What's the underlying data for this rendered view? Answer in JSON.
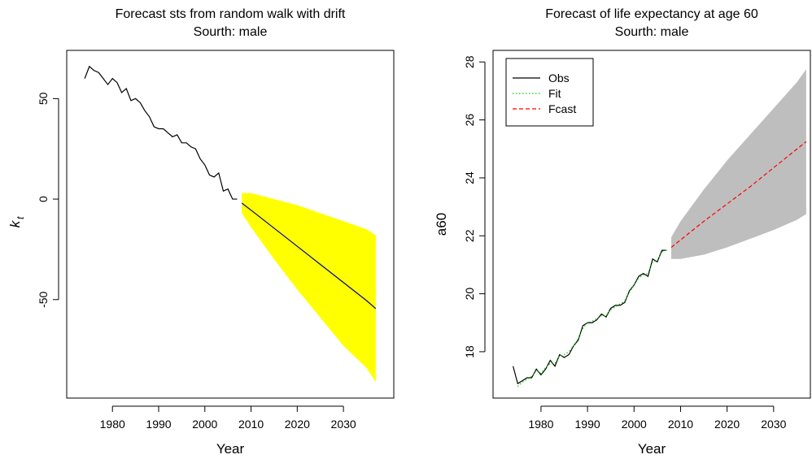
{
  "chart_data": [
    {
      "type": "line",
      "title": "Forecast sts from random walk with drift",
      "subtitle": "Sourth: male",
      "xlabel": "Year",
      "ylabel": "k",
      "ylabel_sub": "t",
      "xlim": [
        1970.1,
        2040.9
      ],
      "ylim": [
        -99,
        74
      ],
      "xticks": [
        1980,
        1990,
        2000,
        2010,
        2020,
        2030
      ],
      "yticks": [
        -50,
        0,
        50
      ],
      "band": {
        "color": "#ffff00",
        "x": [
          2008,
          2010,
          2015,
          2020,
          2025,
          2030,
          2035,
          2037
        ],
        "upper": [
          3,
          3,
          0,
          -3,
          -7,
          -11,
          -15,
          -18
        ],
        "lower": [
          -7,
          -14,
          -30,
          -45,
          -59,
          -73,
          -84,
          -91
        ]
      },
      "series": [
        {
          "color": "#000000",
          "linestyle": "solid",
          "x": [
            1974,
            1975,
            1976,
            1977,
            1978,
            1979,
            1980,
            1981,
            1982,
            1983,
            1984,
            1985,
            1986,
            1987,
            1988,
            1989,
            1990,
            1991,
            1992,
            1993,
            1994,
            1995,
            1996,
            1997,
            1998,
            1999,
            2000,
            2001,
            2002,
            2003,
            2004,
            2005,
            2006,
            2007
          ],
          "values": [
            60,
            66,
            64,
            63,
            60,
            57,
            60,
            58,
            53,
            55,
            49,
            50,
            48,
            44,
            41,
            36,
            35,
            35,
            33,
            31,
            32,
            28,
            28,
            26,
            25,
            20,
            17,
            12,
            11,
            13,
            4,
            5,
            0,
            0
          ]
        },
        {
          "color": "#000080",
          "linestyle": "solid",
          "x": [
            2008,
            2010,
            2015,
            2020,
            2025,
            2030,
            2035,
            2037
          ],
          "values": [
            -2,
            -5.5,
            -14.5,
            -23.5,
            -32.5,
            -41.5,
            -50.5,
            -54.5
          ]
        }
      ]
    },
    {
      "type": "line",
      "title": "Forecast of life expectancy at age 60",
      "subtitle": "Sourth: male",
      "xlabel": "Year",
      "ylabel": "a60",
      "xlim": [
        1969.7,
        2037.9
      ],
      "ylim": [
        16.4,
        28.4
      ],
      "xticks": [
        1980,
        1990,
        2000,
        2010,
        2020,
        2030
      ],
      "yticks": [
        18,
        20,
        22,
        24,
        26,
        28
      ],
      "legend": "top-left",
      "band": {
        "color": "#bebebe",
        "x": [
          2008,
          2010,
          2015,
          2020,
          2025,
          2030,
          2035,
          2037
        ],
        "upper": [
          21.95,
          22.5,
          23.6,
          24.6,
          25.5,
          26.4,
          27.3,
          27.75
        ],
        "lower": [
          21.2,
          21.2,
          21.35,
          21.6,
          21.9,
          22.2,
          22.55,
          22.75
        ]
      },
      "series": [
        {
          "name": "Obs",
          "color": "#000000",
          "linestyle": "solid",
          "x": [
            1974,
            1975,
            1976,
            1977,
            1978,
            1979,
            1980,
            1981,
            1982,
            1983,
            1984,
            1985,
            1986,
            1987,
            1988,
            1989,
            1990,
            1991,
            1992,
            1993,
            1994,
            1995,
            1996,
            1997,
            1998,
            1999,
            2000,
            2001,
            2002,
            2003,
            2004,
            2005,
            2006,
            2007
          ],
          "values": [
            17.5,
            16.9,
            17.0,
            17.1,
            17.1,
            17.4,
            17.2,
            17.4,
            17.7,
            17.5,
            17.9,
            17.8,
            17.9,
            18.2,
            18.4,
            18.9,
            19.0,
            19.0,
            19.1,
            19.3,
            19.2,
            19.5,
            19.6,
            19.6,
            19.7,
            20.1,
            20.3,
            20.6,
            20.7,
            20.6,
            21.2,
            21.1,
            21.5,
            21.5
          ]
        },
        {
          "name": "Fit",
          "color": "#00cd00",
          "linestyle": "dotted",
          "x": [
            1975,
            1976,
            1977,
            1978,
            1979,
            1980,
            1981,
            1982,
            1983,
            1984,
            1985,
            1986,
            1987,
            1988,
            1989,
            1990,
            1991,
            1992,
            1993,
            1994,
            1995,
            1996,
            1997,
            1998,
            1999,
            2000,
            2001,
            2002,
            2003,
            2004,
            2005,
            2006,
            2007
          ],
          "values": [
            16.8,
            16.95,
            17.05,
            17.15,
            17.35,
            17.25,
            17.45,
            17.6,
            17.6,
            17.85,
            17.9,
            18.0,
            18.2,
            18.45,
            18.8,
            19.0,
            19.05,
            19.15,
            19.25,
            19.25,
            19.45,
            19.55,
            19.65,
            19.75,
            20.05,
            20.3,
            20.55,
            20.65,
            20.7,
            21.1,
            21.15,
            21.45,
            21.5
          ]
        },
        {
          "name": "Fcast",
          "color": "#ff0000",
          "linestyle": "dashed",
          "x": [
            2008,
            2015,
            2020,
            2025,
            2030,
            2037
          ],
          "values": [
            21.6,
            22.5,
            23.1,
            23.7,
            24.35,
            25.25
          ]
        }
      ]
    }
  ]
}
